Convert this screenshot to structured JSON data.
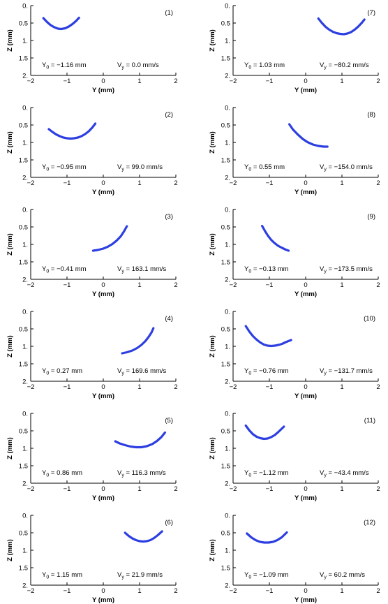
{
  "style": {
    "curve_color": "#2d3fe0"
  },
  "chart_data": [
    {
      "type": "line",
      "panel_label": "(1)",
      "xlabel": "Y (mm)",
      "ylabel": "Z (mm)",
      "xlim": [
        -2,
        2
      ],
      "ylim": [
        2,
        0
      ],
      "y_inverted": true,
      "x_ticks": [
        "−2",
        "−1",
        "0",
        "1",
        "2"
      ],
      "y_ticks": [
        "0.",
        "0.5",
        "1.",
        "1.5",
        "2."
      ],
      "y0_text": "−1.16 mm",
      "vy_text": "= 0.0 mm/s",
      "x": [
        -1.65,
        -1.55,
        -1.45,
        -1.35,
        -1.25,
        -1.16,
        -1.05,
        -0.95,
        -0.85,
        -0.75,
        -0.67
      ],
      "y": [
        0.36,
        0.47,
        0.56,
        0.62,
        0.66,
        0.67,
        0.65,
        0.6,
        0.53,
        0.44,
        0.35
      ]
    },
    {
      "type": "line",
      "panel_label": "(2)",
      "xlabel": "Y (mm)",
      "ylabel": "Z (mm)",
      "xlim": [
        -2,
        2
      ],
      "ylim": [
        2,
        0
      ],
      "y_inverted": true,
      "x_ticks": [
        "−2",
        "−1",
        "0",
        "1",
        "2"
      ],
      "y_ticks": [
        "0.",
        "0.5",
        "1.",
        "1.5",
        "2."
      ],
      "y0_text": "−0.95 mm",
      "vy_text": "= 99.0 mm/s",
      "x": [
        -1.5,
        -1.4,
        -1.3,
        -1.2,
        -1.1,
        -1.0,
        -0.9,
        -0.8,
        -0.7,
        -0.6,
        -0.5,
        -0.4,
        -0.3,
        -0.22
      ],
      "y": [
        0.62,
        0.7,
        0.77,
        0.82,
        0.86,
        0.88,
        0.89,
        0.88,
        0.86,
        0.82,
        0.76,
        0.68,
        0.57,
        0.46
      ]
    },
    {
      "type": "line",
      "panel_label": "(3)",
      "xlabel": "Y (mm)",
      "ylabel": "Z (mm)",
      "xlim": [
        -2,
        2
      ],
      "ylim": [
        2,
        0
      ],
      "y_inverted": true,
      "x_ticks": [
        "−2",
        "−1",
        "0",
        "1",
        "2"
      ],
      "y_ticks": [
        "0.",
        "0.5",
        "1.",
        "1.5",
        "2."
      ],
      "y0_text": "−0.41 mm",
      "vy_text": "= 163.1 mm/s",
      "x": [
        -0.28,
        -0.15,
        0.0,
        0.12,
        0.25,
        0.37,
        0.48,
        0.57,
        0.65
      ],
      "y": [
        1.18,
        1.16,
        1.12,
        1.07,
        0.99,
        0.89,
        0.77,
        0.63,
        0.48
      ]
    },
    {
      "type": "line",
      "panel_label": "(4)",
      "xlabel": "Y (mm)",
      "ylabel": "Z (mm)",
      "xlim": [
        -2,
        2
      ],
      "ylim": [
        2,
        0
      ],
      "y_inverted": true,
      "x_ticks": [
        "−2",
        "−1",
        "0",
        "1",
        "2"
      ],
      "y_ticks": [
        "0.",
        "0.5",
        "1.",
        "1.5",
        "2."
      ],
      "y0_text": "0.27 mm",
      "vy_text": "= 169.6 mm/s",
      "x": [
        0.52,
        0.65,
        0.8,
        0.93,
        1.05,
        1.16,
        1.25,
        1.33,
        1.38
      ],
      "y": [
        1.2,
        1.17,
        1.12,
        1.05,
        0.96,
        0.85,
        0.73,
        0.6,
        0.48
      ]
    },
    {
      "type": "line",
      "panel_label": "(5)",
      "xlabel": "Y (mm)",
      "ylabel": "Z (mm)",
      "xlim": [
        -2,
        2
      ],
      "ylim": [
        2,
        0
      ],
      "y_inverted": true,
      "x_ticks": [
        "−2",
        "−1",
        "0",
        "1",
        "2"
      ],
      "y_ticks": [
        "0.",
        "0.5",
        "1.",
        "1.5",
        "2."
      ],
      "y0_text": "0.86 mm",
      "vy_text": "= 116.3 mm/s",
      "x": [
        0.33,
        0.45,
        0.6,
        0.75,
        0.9,
        1.05,
        1.2,
        1.35,
        1.48,
        1.6,
        1.7
      ],
      "y": [
        0.8,
        0.86,
        0.91,
        0.95,
        0.97,
        0.97,
        0.94,
        0.88,
        0.79,
        0.68,
        0.55
      ]
    },
    {
      "type": "line",
      "panel_label": "(6)",
      "xlabel": "Y (mm)",
      "ylabel": "Z (mm)",
      "xlim": [
        -2,
        2
      ],
      "ylim": [
        2,
        0
      ],
      "y_inverted": true,
      "x_ticks": [
        "−2",
        "−1",
        "0",
        "1",
        "2"
      ],
      "y_ticks": [
        "0.",
        "0.5",
        "1.",
        "1.5",
        "2."
      ],
      "y0_text": "1.15 mm",
      "vy_text": "= 21.9 mm/s",
      "x": [
        0.6,
        0.7,
        0.8,
        0.9,
        1.0,
        1.1,
        1.2,
        1.3,
        1.4,
        1.5,
        1.62
      ],
      "y": [
        0.5,
        0.59,
        0.66,
        0.71,
        0.74,
        0.75,
        0.74,
        0.71,
        0.65,
        0.57,
        0.46
      ]
    },
    {
      "type": "line",
      "panel_label": "(7)",
      "xlabel": "Y (mm)",
      "ylabel": "Z (mm)",
      "xlim": [
        -2,
        2
      ],
      "ylim": [
        2,
        0
      ],
      "y_inverted": true,
      "x_ticks": [
        "−2",
        "−1",
        "0",
        "1",
        "2"
      ],
      "y_ticks": [
        "0.",
        "0.5",
        "1.",
        "1.5",
        "2."
      ],
      "y0_text": "1.03 mm",
      "vy_text": "= −80.2 mm/s",
      "x": [
        0.35,
        0.45,
        0.55,
        0.65,
        0.75,
        0.85,
        0.95,
        1.05,
        1.15,
        1.25,
        1.35,
        1.45,
        1.55,
        1.62
      ],
      "y": [
        0.37,
        0.5,
        0.61,
        0.69,
        0.75,
        0.79,
        0.81,
        0.82,
        0.8,
        0.76,
        0.69,
        0.6,
        0.49,
        0.4
      ]
    },
    {
      "type": "line",
      "panel_label": "(8)",
      "xlabel": "Y (mm)",
      "ylabel": "Z (mm)",
      "xlim": [
        -2,
        2
      ],
      "ylim": [
        2,
        0
      ],
      "y_inverted": true,
      "x_ticks": [
        "−2",
        "−1",
        "0",
        "1",
        "2"
      ],
      "y_ticks": [
        "0.",
        "0.5",
        "1.",
        "1.5",
        "2."
      ],
      "y0_text": "0.55 mm",
      "vy_text": "= −154.0 mm/s",
      "x": [
        -0.45,
        -0.35,
        -0.22,
        -0.08,
        0.05,
        0.2,
        0.35,
        0.5,
        0.6
      ],
      "y": [
        0.48,
        0.63,
        0.77,
        0.9,
        0.99,
        1.06,
        1.1,
        1.12,
        1.12
      ]
    },
    {
      "type": "line",
      "panel_label": "(9)",
      "xlabel": "Y (mm)",
      "ylabel": "Z (mm)",
      "xlim": [
        -2,
        2
      ],
      "ylim": [
        2,
        0
      ],
      "y_inverted": true,
      "x_ticks": [
        "−2",
        "−1",
        "0",
        "1",
        "2"
      ],
      "y_ticks": [
        "0.",
        "0.5",
        "1.",
        "1.5",
        "2."
      ],
      "y0_text": "−0.13 mm",
      "vy_text": "= −173.5 mm/s",
      "x": [
        -1.2,
        -1.12,
        -1.04,
        -0.95,
        -0.86,
        -0.76,
        -0.65,
        -0.55,
        -0.47
      ],
      "y": [
        0.47,
        0.62,
        0.75,
        0.87,
        0.96,
        1.04,
        1.1,
        1.15,
        1.18
      ]
    },
    {
      "type": "line",
      "panel_label": "(10)",
      "xlabel": "Y (mm)",
      "ylabel": "Z (mm)",
      "xlim": [
        -2,
        2
      ],
      "ylim": [
        2,
        0
      ],
      "y_inverted": true,
      "x_ticks": [
        "−2",
        "−1",
        "0",
        "1",
        "2"
      ],
      "y_ticks": [
        "0.",
        "0.5",
        "1.",
        "1.5",
        "2."
      ],
      "y0_text": "−0.76 mm",
      "vy_text": "= −131.7 mm/s",
      "x": [
        -1.65,
        -1.55,
        -1.45,
        -1.35,
        -1.25,
        -1.15,
        -1.05,
        -0.95,
        -0.85,
        -0.75,
        -0.65,
        -0.55,
        -0.4
      ],
      "y": [
        0.42,
        0.58,
        0.71,
        0.81,
        0.89,
        0.95,
        0.98,
        0.99,
        0.98,
        0.96,
        0.93,
        0.88,
        0.82
      ]
    },
    {
      "type": "line",
      "panel_label": "(11)",
      "xlabel": "Y (mm)",
      "ylabel": "Z (mm)",
      "xlim": [
        -2,
        2
      ],
      "ylim": [
        2,
        0
      ],
      "y_inverted": true,
      "x_ticks": [
        "−2",
        "−1",
        "0",
        "1",
        "2"
      ],
      "y_ticks": [
        "0.",
        "0.5",
        "1.",
        "1.5",
        "2."
      ],
      "y0_text": "−1.12 mm",
      "vy_text": "= −43.4 mm/s",
      "x": [
        -1.65,
        -1.55,
        -1.45,
        -1.35,
        -1.25,
        -1.15,
        -1.05,
        -0.95,
        -0.85,
        -0.75,
        -0.6
      ],
      "y": [
        0.35,
        0.49,
        0.6,
        0.67,
        0.71,
        0.73,
        0.72,
        0.68,
        0.62,
        0.53,
        0.38
      ]
    },
    {
      "type": "line",
      "panel_label": "(12)",
      "xlabel": "Y (mm)",
      "ylabel": "Z (mm)",
      "xlim": [
        -2,
        2
      ],
      "ylim": [
        2,
        0
      ],
      "y_inverted": true,
      "x_ticks": [
        "−2",
        "−1",
        "0",
        "1",
        "2"
      ],
      "y_ticks": [
        "0.",
        "0.5",
        "1.",
        "1.5",
        "2."
      ],
      "y0_text": "−1.09 mm",
      "vy_text": "= 60.2 mm/s",
      "x": [
        -1.62,
        -1.5,
        -1.38,
        -1.26,
        -1.14,
        -1.02,
        -0.9,
        -0.78,
        -0.66,
        -0.52
      ],
      "y": [
        0.52,
        0.63,
        0.71,
        0.76,
        0.78,
        0.78,
        0.76,
        0.71,
        0.63,
        0.49
      ]
    }
  ]
}
